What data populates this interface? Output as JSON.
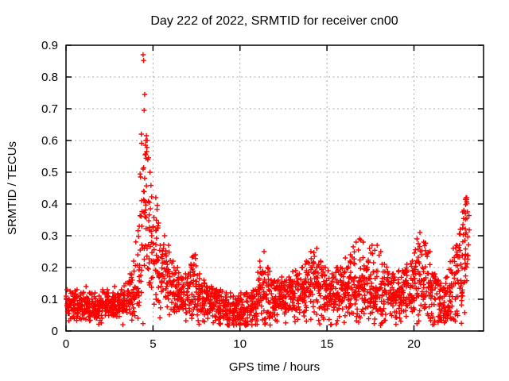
{
  "page": {
    "background_color": "#ffffff",
    "text_color": "#000000"
  },
  "chart_data": {
    "type": "scatter",
    "title": "Day 222 of 2022, SRMTID for receiver cn00",
    "xlabel": "GPS time / hours",
    "ylabel": "SRMTID / TECUs",
    "xlim": [
      0,
      24
    ],
    "ylim": [
      0,
      0.9
    ],
    "xticks": [
      0,
      5,
      10,
      15,
      20
    ],
    "yticks": [
      0,
      0.1,
      0.2,
      0.3,
      0.4,
      0.5,
      0.6,
      0.7,
      0.8,
      0.9
    ],
    "grid": true,
    "grid_color": "#a8a8a8",
    "frame_color": "#000000",
    "marker": "plus",
    "marker_color": "#ff0000",
    "series_name": "SRMTID",
    "time_start_hours": 0.0,
    "time_end_hours": 23.2,
    "bin_width_hours": 0.25,
    "points_per_bin": 23,
    "profile_legend": "bins of [center_hour, mean_TECU, spread_TECU, max_TECU]",
    "profile": [
      [
        0.125,
        0.085,
        0.02,
        0.13
      ],
      [
        0.375,
        0.08,
        0.02,
        0.12
      ],
      [
        0.625,
        0.08,
        0.022,
        0.13
      ],
      [
        0.875,
        0.075,
        0.02,
        0.12
      ],
      [
        1.125,
        0.08,
        0.022,
        0.14
      ],
      [
        1.375,
        0.075,
        0.022,
        0.12
      ],
      [
        1.625,
        0.07,
        0.022,
        0.12
      ],
      [
        1.875,
        0.065,
        0.022,
        0.11
      ],
      [
        2.125,
        0.075,
        0.025,
        0.13
      ],
      [
        2.375,
        0.08,
        0.022,
        0.13
      ],
      [
        2.625,
        0.075,
        0.02,
        0.12
      ],
      [
        2.875,
        0.08,
        0.022,
        0.14
      ],
      [
        3.125,
        0.08,
        0.022,
        0.13
      ],
      [
        3.375,
        0.085,
        0.025,
        0.15
      ],
      [
        3.625,
        0.1,
        0.03,
        0.18
      ],
      [
        3.875,
        0.12,
        0.04,
        0.22
      ],
      [
        4.125,
        0.17,
        0.065,
        0.33
      ],
      [
        4.375,
        0.3,
        0.13,
        0.62
      ],
      [
        4.625,
        0.37,
        0.12,
        0.6
      ],
      [
        4.875,
        0.28,
        0.095,
        0.5
      ],
      [
        5.125,
        0.24,
        0.075,
        0.42
      ],
      [
        5.375,
        0.2,
        0.06,
        0.34
      ],
      [
        5.625,
        0.18,
        0.055,
        0.3
      ],
      [
        5.875,
        0.16,
        0.05,
        0.27
      ],
      [
        6.125,
        0.13,
        0.042,
        0.22
      ],
      [
        6.375,
        0.12,
        0.04,
        0.2
      ],
      [
        6.625,
        0.11,
        0.035,
        0.17
      ],
      [
        6.875,
        0.11,
        0.035,
        0.18
      ],
      [
        7.125,
        0.12,
        0.04,
        0.21
      ],
      [
        7.375,
        0.13,
        0.045,
        0.24
      ],
      [
        7.625,
        0.11,
        0.04,
        0.18
      ],
      [
        7.875,
        0.1,
        0.035,
        0.16
      ],
      [
        8.125,
        0.09,
        0.03,
        0.14
      ],
      [
        8.375,
        0.09,
        0.028,
        0.14
      ],
      [
        8.625,
        0.08,
        0.03,
        0.13
      ],
      [
        8.875,
        0.07,
        0.032,
        0.13
      ],
      [
        9.125,
        0.072,
        0.03,
        0.12
      ],
      [
        9.375,
        0.07,
        0.03,
        0.12
      ],
      [
        9.625,
        0.06,
        0.028,
        0.11
      ],
      [
        9.875,
        0.058,
        0.03,
        0.11
      ],
      [
        10.125,
        0.055,
        0.03,
        0.12
      ],
      [
        10.375,
        0.06,
        0.03,
        0.12
      ],
      [
        10.625,
        0.075,
        0.03,
        0.12
      ],
      [
        10.875,
        0.08,
        0.03,
        0.13
      ],
      [
        11.125,
        0.1,
        0.045,
        0.22
      ],
      [
        11.375,
        0.12,
        0.055,
        0.25
      ],
      [
        11.625,
        0.1,
        0.04,
        0.2
      ],
      [
        11.875,
        0.095,
        0.035,
        0.16
      ],
      [
        12.125,
        0.095,
        0.035,
        0.16
      ],
      [
        12.375,
        0.1,
        0.035,
        0.17
      ],
      [
        12.625,
        0.1,
        0.035,
        0.16
      ],
      [
        12.875,
        0.105,
        0.035,
        0.17
      ],
      [
        13.125,
        0.11,
        0.04,
        0.19
      ],
      [
        13.375,
        0.11,
        0.04,
        0.18
      ],
      [
        13.625,
        0.12,
        0.045,
        0.2
      ],
      [
        13.875,
        0.13,
        0.05,
        0.22
      ],
      [
        14.125,
        0.14,
        0.055,
        0.25
      ],
      [
        14.375,
        0.15,
        0.055,
        0.26
      ],
      [
        14.625,
        0.13,
        0.05,
        0.22
      ],
      [
        14.875,
        0.12,
        0.045,
        0.2
      ],
      [
        15.125,
        0.11,
        0.04,
        0.19
      ],
      [
        15.375,
        0.11,
        0.04,
        0.18
      ],
      [
        15.625,
        0.12,
        0.045,
        0.2
      ],
      [
        15.875,
        0.12,
        0.045,
        0.2
      ],
      [
        16.125,
        0.13,
        0.05,
        0.23
      ],
      [
        16.375,
        0.13,
        0.05,
        0.24
      ],
      [
        16.625,
        0.14,
        0.055,
        0.28
      ],
      [
        16.875,
        0.14,
        0.055,
        0.29
      ],
      [
        17.125,
        0.14,
        0.055,
        0.28
      ],
      [
        17.375,
        0.13,
        0.05,
        0.26
      ],
      [
        17.625,
        0.13,
        0.055,
        0.27
      ],
      [
        17.875,
        0.13,
        0.055,
        0.27
      ],
      [
        18.125,
        0.12,
        0.05,
        0.25
      ],
      [
        18.375,
        0.115,
        0.045,
        0.21
      ],
      [
        18.625,
        0.11,
        0.04,
        0.18
      ],
      [
        18.875,
        0.11,
        0.04,
        0.18
      ],
      [
        19.125,
        0.115,
        0.04,
        0.19
      ],
      [
        19.375,
        0.12,
        0.04,
        0.19
      ],
      [
        19.625,
        0.125,
        0.045,
        0.21
      ],
      [
        19.875,
        0.13,
        0.05,
        0.22
      ],
      [
        20.125,
        0.16,
        0.06,
        0.29
      ],
      [
        20.375,
        0.17,
        0.06,
        0.31
      ],
      [
        20.625,
        0.15,
        0.06,
        0.28
      ],
      [
        20.875,
        0.13,
        0.055,
        0.25
      ],
      [
        21.125,
        0.1,
        0.05,
        0.18
      ],
      [
        21.375,
        0.09,
        0.05,
        0.16
      ],
      [
        21.625,
        0.08,
        0.045,
        0.15
      ],
      [
        21.875,
        0.09,
        0.05,
        0.17
      ],
      [
        22.125,
        0.12,
        0.06,
        0.22
      ],
      [
        22.375,
        0.15,
        0.07,
        0.27
      ],
      [
        22.625,
        0.18,
        0.08,
        0.32
      ],
      [
        22.875,
        0.24,
        0.09,
        0.38
      ],
      [
        23.075,
        0.3,
        0.085,
        0.42
      ]
    ],
    "outlier_points": [
      [
        4.43,
        0.87
      ],
      [
        4.46,
        0.852
      ],
      [
        4.52,
        0.745
      ],
      [
        4.49,
        0.695
      ],
      [
        4.62,
        0.615
      ],
      [
        4.59,
        0.6
      ],
      [
        4.57,
        0.585
      ],
      [
        4.64,
        0.565
      ],
      [
        4.55,
        0.555
      ],
      [
        4.7,
        0.54
      ],
      [
        23.0,
        0.42
      ],
      [
        23.03,
        0.408
      ],
      [
        22.97,
        0.398
      ]
    ]
  }
}
